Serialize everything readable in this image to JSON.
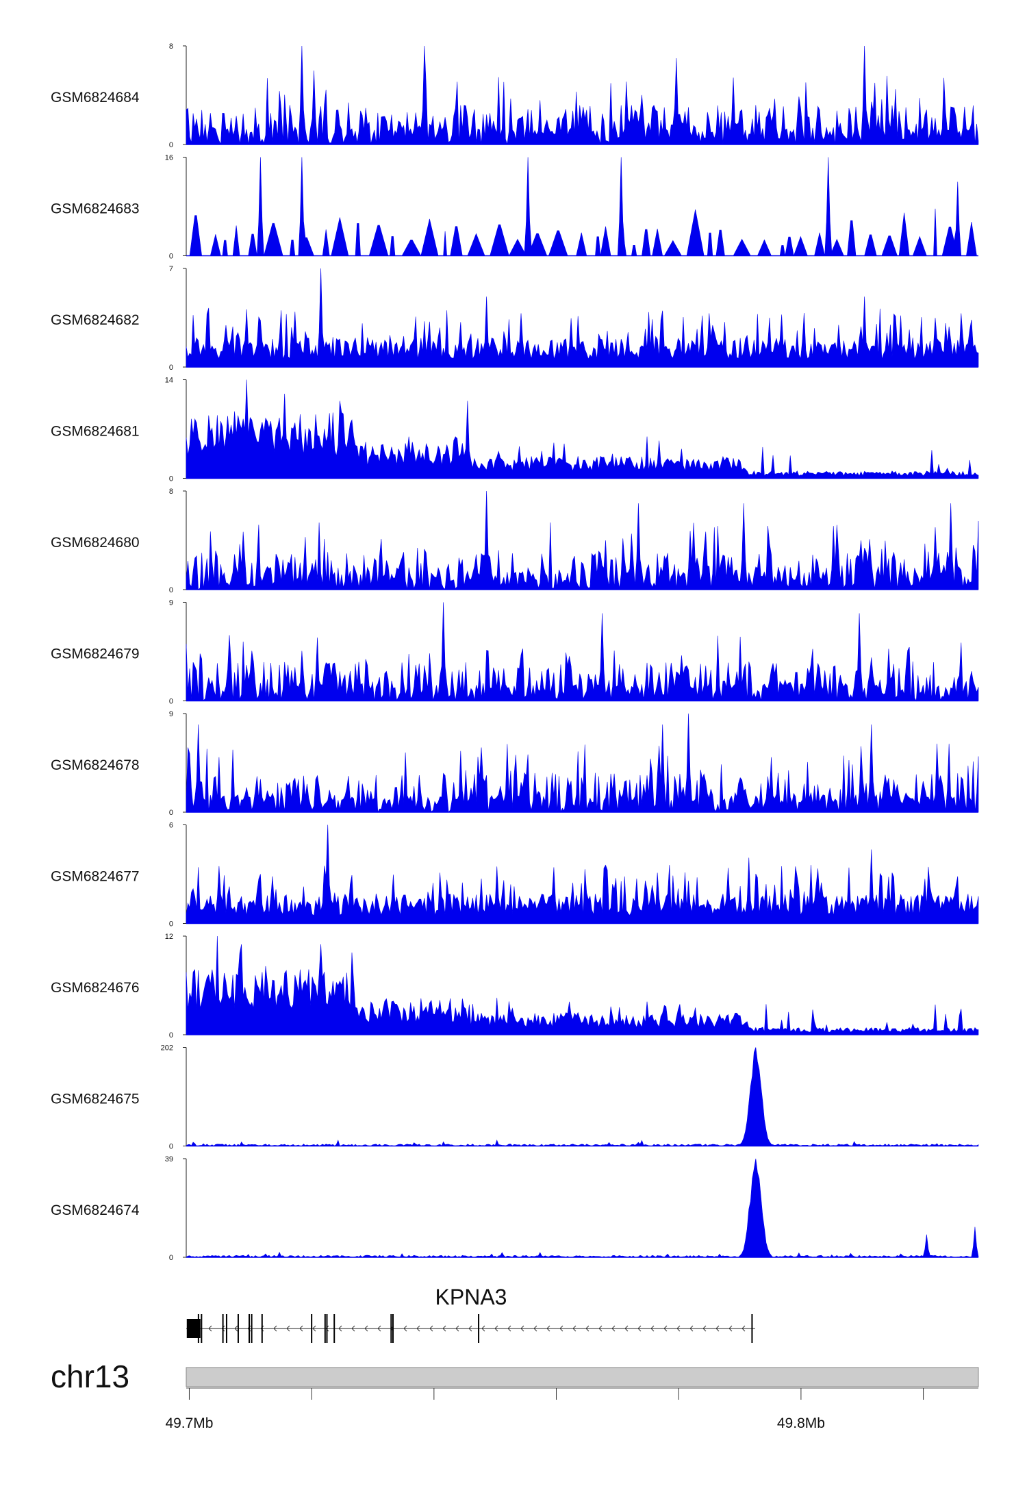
{
  "chart_data": {
    "type": "area",
    "chromosome": "chr13",
    "x_range_mb": [
      49.6995,
      49.829
    ],
    "x_ticks_mb": [
      49.7,
      49.72,
      49.74,
      49.76,
      49.78,
      49.8,
      49.82
    ],
    "x_tick_labels": [
      {
        "mb": 49.7,
        "label": "49.7Mb"
      },
      {
        "mb": 49.8,
        "label": "49.8Mb"
      }
    ],
    "fill_color": "#0000ee",
    "tracks": [
      {
        "name": "GSM6824684",
        "ymax": 8,
        "ymax_label": "8",
        "ymin_label": "0",
        "pattern": "sparse",
        "peaks": [
          [
            49.7185,
            8
          ],
          [
            49.7385,
            8
          ],
          [
            49.8105,
            8
          ],
          [
            49.7205,
            6
          ],
          [
            49.7795,
            7
          ]
        ]
      },
      {
        "name": "GSM6824683",
        "ymax": 16,
        "ymax_label": "16",
        "ymin_label": "0",
        "pattern": "triangles",
        "peaks": [
          [
            49.7115,
            16
          ],
          [
            49.7185,
            16
          ],
          [
            49.7555,
            16
          ],
          [
            49.7705,
            16
          ],
          [
            49.8045,
            16
          ],
          [
            49.8255,
            12
          ]
        ]
      },
      {
        "name": "GSM6824682",
        "ymax": 7,
        "ymax_label": "7",
        "ymin_label": "0",
        "pattern": "dense",
        "peaks": [
          [
            49.7215,
            7
          ],
          [
            49.7485,
            5
          ],
          [
            49.8105,
            5
          ],
          [
            49.7775,
            4
          ]
        ]
      },
      {
        "name": "GSM6824681",
        "ymax": 14,
        "ymax_label": "14",
        "ymin_label": "0",
        "pattern": "broad",
        "peaks": [
          [
            49.7095,
            14
          ],
          [
            49.7155,
            12
          ],
          [
            49.7455,
            11
          ],
          [
            49.7245,
            11
          ]
        ]
      },
      {
        "name": "GSM6824680",
        "ymax": 8,
        "ymax_label": "8",
        "ymin_label": "0",
        "pattern": "sparse",
        "peaks": [
          [
            49.7485,
            8
          ],
          [
            49.7735,
            7
          ],
          [
            49.7905,
            7
          ],
          [
            49.8245,
            7
          ]
        ]
      },
      {
        "name": "GSM6824679",
        "ymax": 9,
        "ymax_label": "9",
        "ymin_label": "0",
        "pattern": "sparse",
        "peaks": [
          [
            49.7415,
            9
          ],
          [
            49.8095,
            8
          ],
          [
            49.7675,
            8
          ],
          [
            49.7065,
            6
          ]
        ]
      },
      {
        "name": "GSM6824678",
        "ymax": 9,
        "ymax_label": "9",
        "ymin_label": "0",
        "pattern": "sparse",
        "peaks": [
          [
            49.7815,
            9
          ],
          [
            49.7015,
            8
          ],
          [
            49.8115,
            8
          ],
          [
            49.7775,
            8
          ]
        ]
      },
      {
        "name": "GSM6824677",
        "ymax": 6,
        "ymax_label": "6",
        "ymin_label": "0",
        "pattern": "dense",
        "peaks": [
          [
            49.7225,
            6
          ],
          [
            49.8115,
            4.5
          ],
          [
            49.7915,
            4
          ]
        ]
      },
      {
        "name": "GSM6824676",
        "ymax": 12,
        "ymax_label": "12",
        "ymin_label": "0",
        "pattern": "broad",
        "peaks": [
          [
            49.7045,
            12
          ],
          [
            49.7085,
            11
          ],
          [
            49.7215,
            11
          ],
          [
            49.7265,
            10
          ]
        ]
      },
      {
        "name": "GSM6824675",
        "ymax": 202,
        "ymax_label": "202",
        "ymin_label": "0",
        "pattern": "single_peak",
        "peaks": [
          [
            49.7925,
            202
          ]
        ]
      },
      {
        "name": "GSM6824674",
        "ymax": 39,
        "ymax_label": "39",
        "ymin_label": "0",
        "pattern": "single_peak",
        "peaks": [
          [
            49.7925,
            39
          ],
          [
            49.7915,
            19
          ],
          [
            49.8205,
            9
          ],
          [
            49.8285,
            12
          ]
        ]
      }
    ],
    "genes": [
      {
        "name": "KPNA3",
        "start_mb": 49.6995,
        "end_mb": 49.7925,
        "strand": "-",
        "exons_mb": [
          49.6997,
          49.7015,
          49.702,
          49.7055,
          49.7061,
          49.708,
          49.7098,
          49.7102,
          49.7119,
          49.72,
          49.7222,
          49.7225,
          49.7237,
          49.733,
          49.7333,
          49.7473,
          49.792
        ]
      }
    ]
  }
}
